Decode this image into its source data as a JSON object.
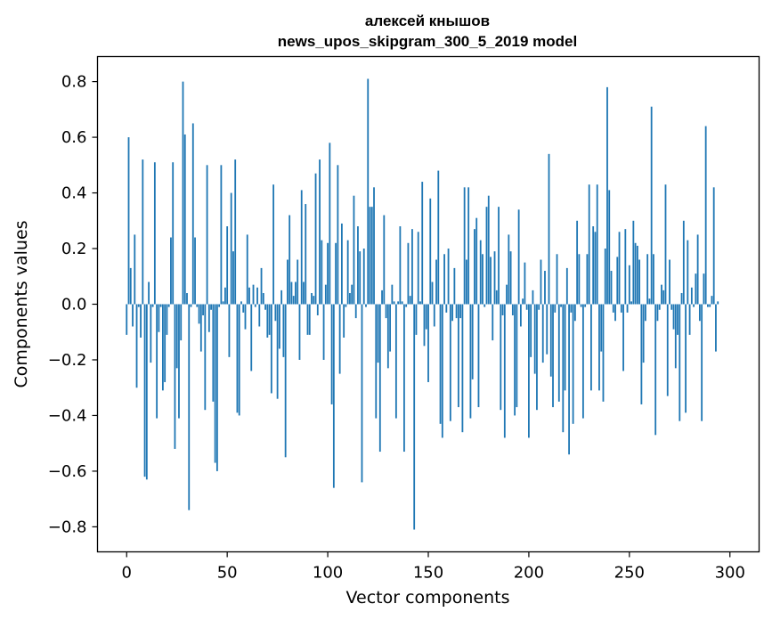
{
  "chart_data": {
    "type": "bar",
    "title_line1": "алексей кнышов",
    "title_line2": "news_upos_skipgram_300_5_2019 model",
    "xlabel": "Vector components",
    "ylabel": "Components values",
    "xlim": [
      -14.5,
      314.5
    ],
    "ylim": [
      -0.89,
      0.89
    ],
    "x_ticks": [
      0,
      50,
      100,
      150,
      200,
      250,
      300
    ],
    "x_tick_labels": [
      "0",
      "50",
      "100",
      "150",
      "200",
      "250",
      "300"
    ],
    "y_ticks": [
      0.8,
      0.6,
      0.4,
      0.2,
      0.0,
      -0.2,
      -0.4,
      -0.6,
      -0.8
    ],
    "y_tick_labels": [
      "0.8",
      "0.6",
      "0.4",
      "0.2",
      "0.0",
      "−0.2",
      "−0.4",
      "−0.6",
      "−0.8"
    ],
    "bar_color": "#1f77b4",
    "bar_width": 0.8,
    "grid": false,
    "series": [
      {
        "x_start": 0,
        "values": [
          -0.11,
          0.6,
          0.13,
          -0.08,
          0.25,
          -0.3,
          -0.01,
          -0.12,
          0.52,
          -0.62,
          -0.63,
          0.08,
          -0.21,
          -0.01,
          0.51,
          -0.41,
          -0.1,
          -0.01,
          -0.31,
          -0.28,
          -0.11,
          -0.01,
          0.24,
          0.51,
          -0.52,
          -0.23,
          -0.41,
          -0.13,
          0.8,
          0.61,
          0.04,
          -0.74,
          -0.01,
          0.65,
          0.24,
          -0.01,
          -0.07,
          -0.17,
          -0.04,
          -0.38,
          0.5,
          -0.1,
          -0.02,
          -0.35,
          -0.57,
          -0.6,
          -0.01,
          0.5,
          0.01,
          0.06,
          0.28,
          -0.19,
          0.4,
          0.19,
          0.52,
          -0.39,
          -0.4,
          0.01,
          -0.03,
          -0.09,
          0.25,
          0.06,
          -0.24,
          0.07,
          -0.01,
          0.06,
          -0.08,
          0.13,
          0.04,
          -0.02,
          -0.12,
          -0.11,
          -0.32,
          0.43,
          -0.06,
          -0.34,
          -0.16,
          0.05,
          -0.19,
          -0.55,
          0.16,
          0.32,
          0.08,
          0.03,
          0.08,
          0.16,
          -0.2,
          0.41,
          0.08,
          0.36,
          -0.11,
          -0.11,
          0.04,
          0.03,
          0.47,
          -0.04,
          0.52,
          0.23,
          -0.2,
          0.07,
          0.22,
          0.58,
          -0.36,
          -0.66,
          0.22,
          0.5,
          -0.25,
          0.29,
          -0.12,
          -0.01,
          0.23,
          0.04,
          0.07,
          0.39,
          -0.05,
          0.28,
          0.19,
          -0.64,
          0.2,
          -0.01,
          0.81,
          0.35,
          0.35,
          0.42,
          -0.41,
          -0.21,
          -0.53,
          0.05,
          0.32,
          -0.05,
          -0.23,
          -0.17,
          0.07,
          0.01,
          -0.41,
          0.01,
          0.28,
          0.01,
          -0.53,
          -0.01,
          0.22,
          0.03,
          0.27,
          -0.81,
          -0.11,
          0.26,
          0.01,
          0.44,
          -0.15,
          -0.09,
          -0.28,
          0.38,
          0.08,
          -0.08,
          0.16,
          0.48,
          -0.43,
          -0.48,
          0.18,
          -0.03,
          0.2,
          -0.42,
          -0.06,
          0.13,
          -0.05,
          -0.37,
          -0.05,
          -0.46,
          0.42,
          0.16,
          0.42,
          -0.41,
          -0.27,
          0.27,
          0.31,
          -0.37,
          0.23,
          0.18,
          -0.01,
          0.35,
          0.39,
          0.17,
          -0.13,
          0.19,
          0.05,
          0.35,
          -0.38,
          -0.04,
          -0.48,
          0.07,
          0.25,
          0.19,
          -0.04,
          -0.4,
          -0.37,
          0.34,
          -0.08,
          0.02,
          0.15,
          -0.02,
          -0.48,
          -0.19,
          0.05,
          -0.25,
          -0.38,
          -0.02,
          0.16,
          -0.21,
          0.12,
          -0.18,
          0.54,
          -0.26,
          -0.37,
          -0.03,
          0.18,
          -0.35,
          -0.01,
          -0.46,
          -0.31,
          0.13,
          -0.54,
          -0.03,
          -0.43,
          -0.06,
          0.3,
          0.18,
          -0.01,
          -0.41,
          -0.01,
          0.18,
          0.43,
          -0.31,
          0.28,
          0.26,
          0.43,
          -0.31,
          -0.17,
          -0.35,
          0.2,
          0.78,
          0.41,
          0.12,
          -0.03,
          -0.06,
          0.17,
          0.26,
          -0.03,
          -0.24,
          0.27,
          -0.03,
          0.14,
          0.01,
          0.3,
          0.22,
          0.21,
          0.16,
          -0.36,
          -0.21,
          -0.06,
          0.18,
          0.02,
          0.71,
          0.18,
          -0.47,
          -0.06,
          -0.02,
          0.07,
          0.05,
          0.43,
          -0.33,
          0.16,
          -0.02,
          -0.09,
          -0.23,
          -0.11,
          -0.42,
          0.04,
          0.3,
          -0.39,
          0.23,
          -0.11,
          0.06,
          -0.01,
          0.11,
          0.25,
          -0.06,
          -0.42,
          0.11,
          0.64,
          -0.01,
          -0.01,
          0.03,
          0.42,
          -0.17,
          0.01
        ]
      }
    ]
  }
}
